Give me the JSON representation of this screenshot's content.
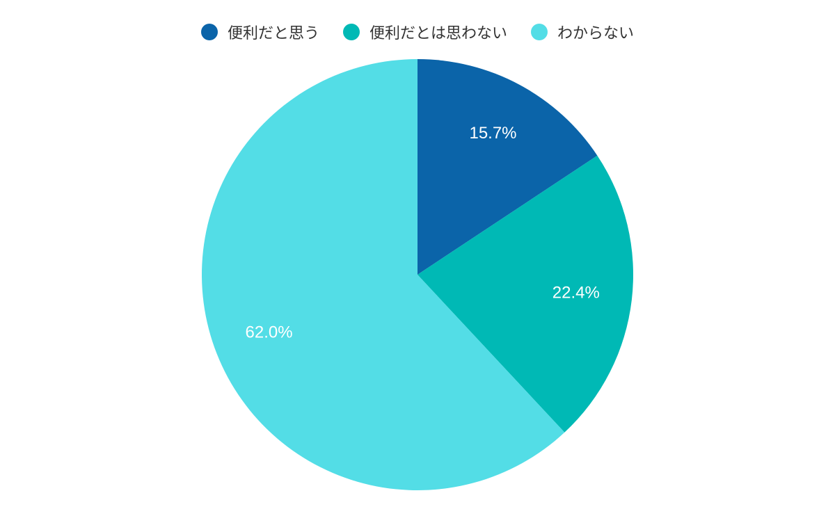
{
  "chart_data": {
    "type": "pie",
    "categories": [
      "便利だと思う",
      "便利だとは思わない",
      "わからない"
    ],
    "values": [
      15.7,
      22.4,
      62.0
    ],
    "value_labels": [
      "15.7%",
      "22.4%",
      "62.0%"
    ],
    "colors": [
      "#0b64a9",
      "#00b9b5",
      "#53dde6"
    ],
    "legend": "top"
  }
}
